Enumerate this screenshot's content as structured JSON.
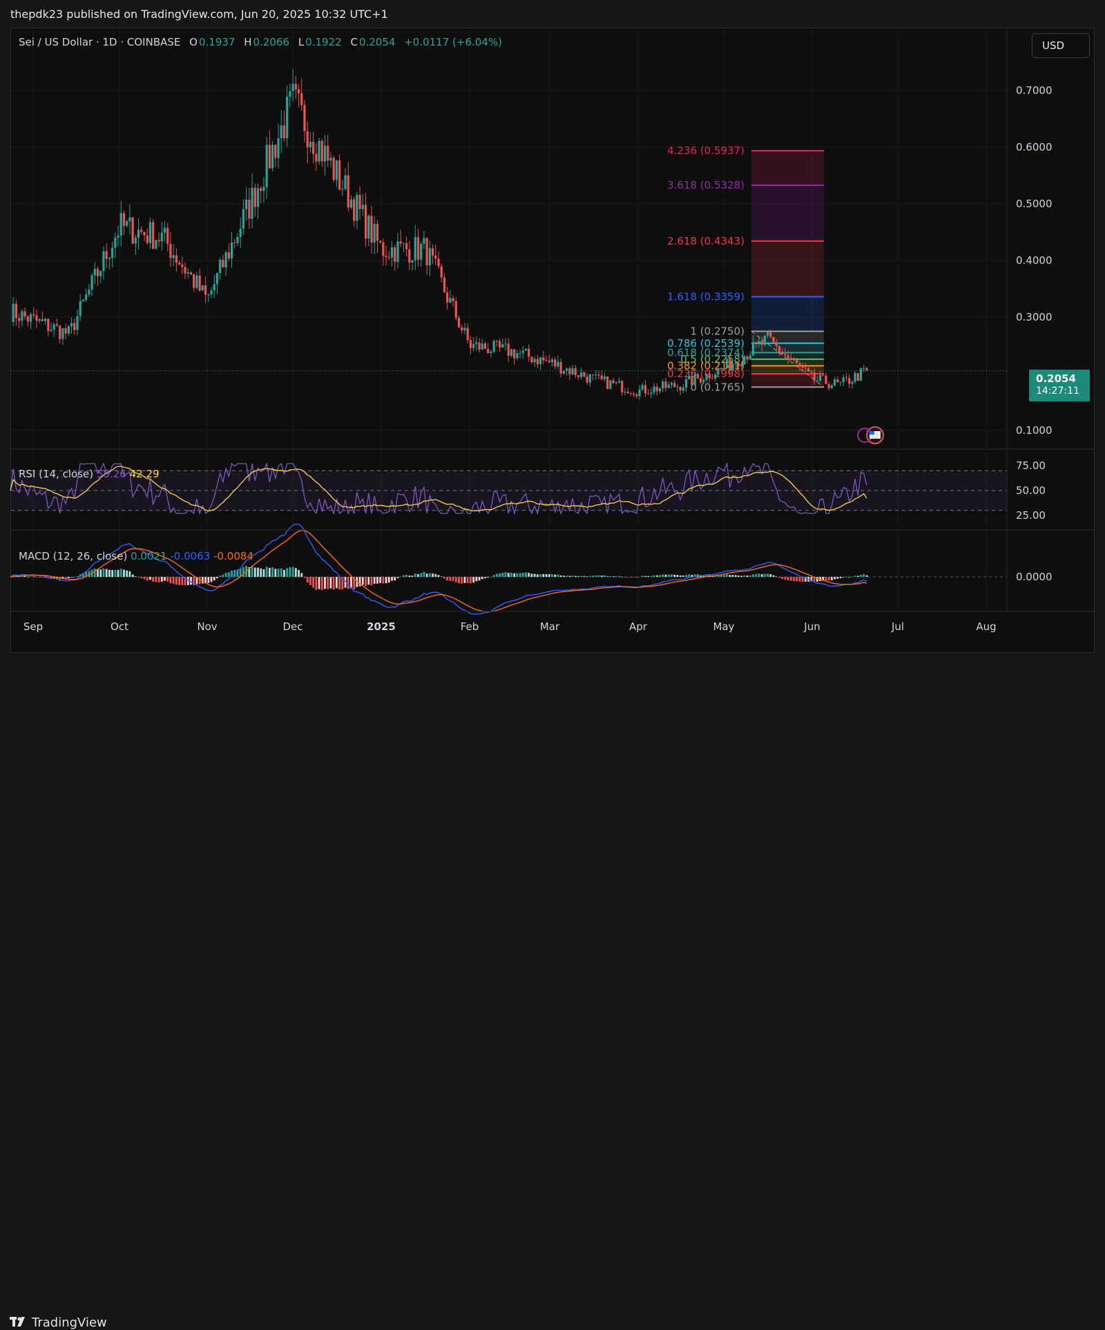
{
  "publisher_line": "thepdk23 published on TradingView.com, Jun 20, 2025 10:32 UTC+1",
  "symbol_title": "Sei / US Dollar · 1D · COINBASE",
  "ohlc": {
    "o_label": "O",
    "o_value": "0.1937",
    "h_label": "H",
    "h_value": "0.2066",
    "l_label": "L",
    "l_value": "0.1922",
    "c_label": "C",
    "c_value": "0.2054",
    "change": "+0.0117 (+6.04%)"
  },
  "currency_button": "USD",
  "last_price": "0.2054",
  "countdown": "14:27:11",
  "price_axis": [
    "0.7000",
    "0.6000",
    "0.5000",
    "0.4000",
    "0.3000",
    "0.1000"
  ],
  "time_axis": [
    "Sep",
    "Oct",
    "Nov",
    "Dec",
    "2025",
    "Feb",
    "Mar",
    "Apr",
    "May",
    "Jun",
    "Jul",
    "Aug"
  ],
  "fib_levels": [
    {
      "label": "4.236 (0.5937)",
      "price": 0.5937,
      "color": "#e91e63"
    },
    {
      "label": "3.618 (0.5328)",
      "price": 0.5328,
      "color": "#9c27b0"
    },
    {
      "label": "2.618 (0.4343)",
      "price": 0.4343,
      "color": "#f23645"
    },
    {
      "label": "1.618 (0.3359)",
      "price": 0.3359,
      "color": "#2962ff"
    },
    {
      "label": "1 (0.2750)",
      "price": 0.275,
      "color": "#9e9e9e"
    },
    {
      "label": "0.786 (0.2539)",
      "price": 0.2539,
      "color": "#26c6da"
    },
    {
      "label": "0.618 (0.2374)",
      "price": 0.2374,
      "color": "#26a69a"
    },
    {
      "label": "0.5 (0.2258)",
      "price": 0.2258,
      "color": "#66bb6a"
    },
    {
      "label": "0.382 (0.2141)",
      "price": 0.2141,
      "color": "#ff9800"
    },
    {
      "label": "0.236 (0.1998)",
      "price": 0.1998,
      "color": "#f23645"
    },
    {
      "label": "0 (0.1765)",
      "price": 0.1765,
      "color": "#9e9e9e"
    }
  ],
  "rsi": {
    "label": "RSI (14, close)",
    "value": "55.26",
    "ma_value": "42.29",
    "axis": [
      "75.00",
      "50.00",
      "25.00"
    ]
  },
  "macd": {
    "label": "MACD (12, 26, close)",
    "hist": "0.0021",
    "macd": "-0.0063",
    "signal": "-0.0084",
    "axis": [
      "0.0000"
    ]
  },
  "brand": "TradingView",
  "colors": {
    "up": "#26a69a",
    "down": "#ef5350",
    "rsi_line": "#7e57c2",
    "rsi_ma": "#fdd835",
    "macd_line": "#2962ff",
    "signal_line": "#ff6d00"
  },
  "chart_data": {
    "type": "candlestick",
    "title": "Sei / US Dollar · 1D · COINBASE",
    "x_range": [
      "Sep",
      "Aug"
    ],
    "ylim": [
      0.1,
      0.7
    ],
    "close_anchors": [
      [
        "Sep",
        0.31
      ],
      [
        "mid-Sep",
        0.27
      ],
      [
        "Oct",
        0.46
      ],
      [
        "mid-Oct",
        0.44
      ],
      [
        "Nov",
        0.33
      ],
      [
        "mid-Nov",
        0.5
      ],
      [
        "Dec",
        0.68
      ],
      [
        "mid-Dec",
        0.55
      ],
      [
        "2025",
        0.42
      ],
      [
        "mid-Jan",
        0.42
      ],
      [
        "Feb",
        0.25
      ],
      [
        "mid-Feb",
        0.24
      ],
      [
        "Mar",
        0.22
      ],
      [
        "mid-Mar",
        0.19
      ],
      [
        "Apr",
        0.17
      ],
      [
        "mid-Apr",
        0.18
      ],
      [
        "May",
        0.21
      ],
      [
        "mid-May",
        0.26
      ],
      [
        "Jun",
        0.19
      ],
      [
        "mid-Jun",
        0.18
      ],
      [
        "Jun 20",
        0.2054
      ]
    ],
    "last_close": 0.2054
  }
}
